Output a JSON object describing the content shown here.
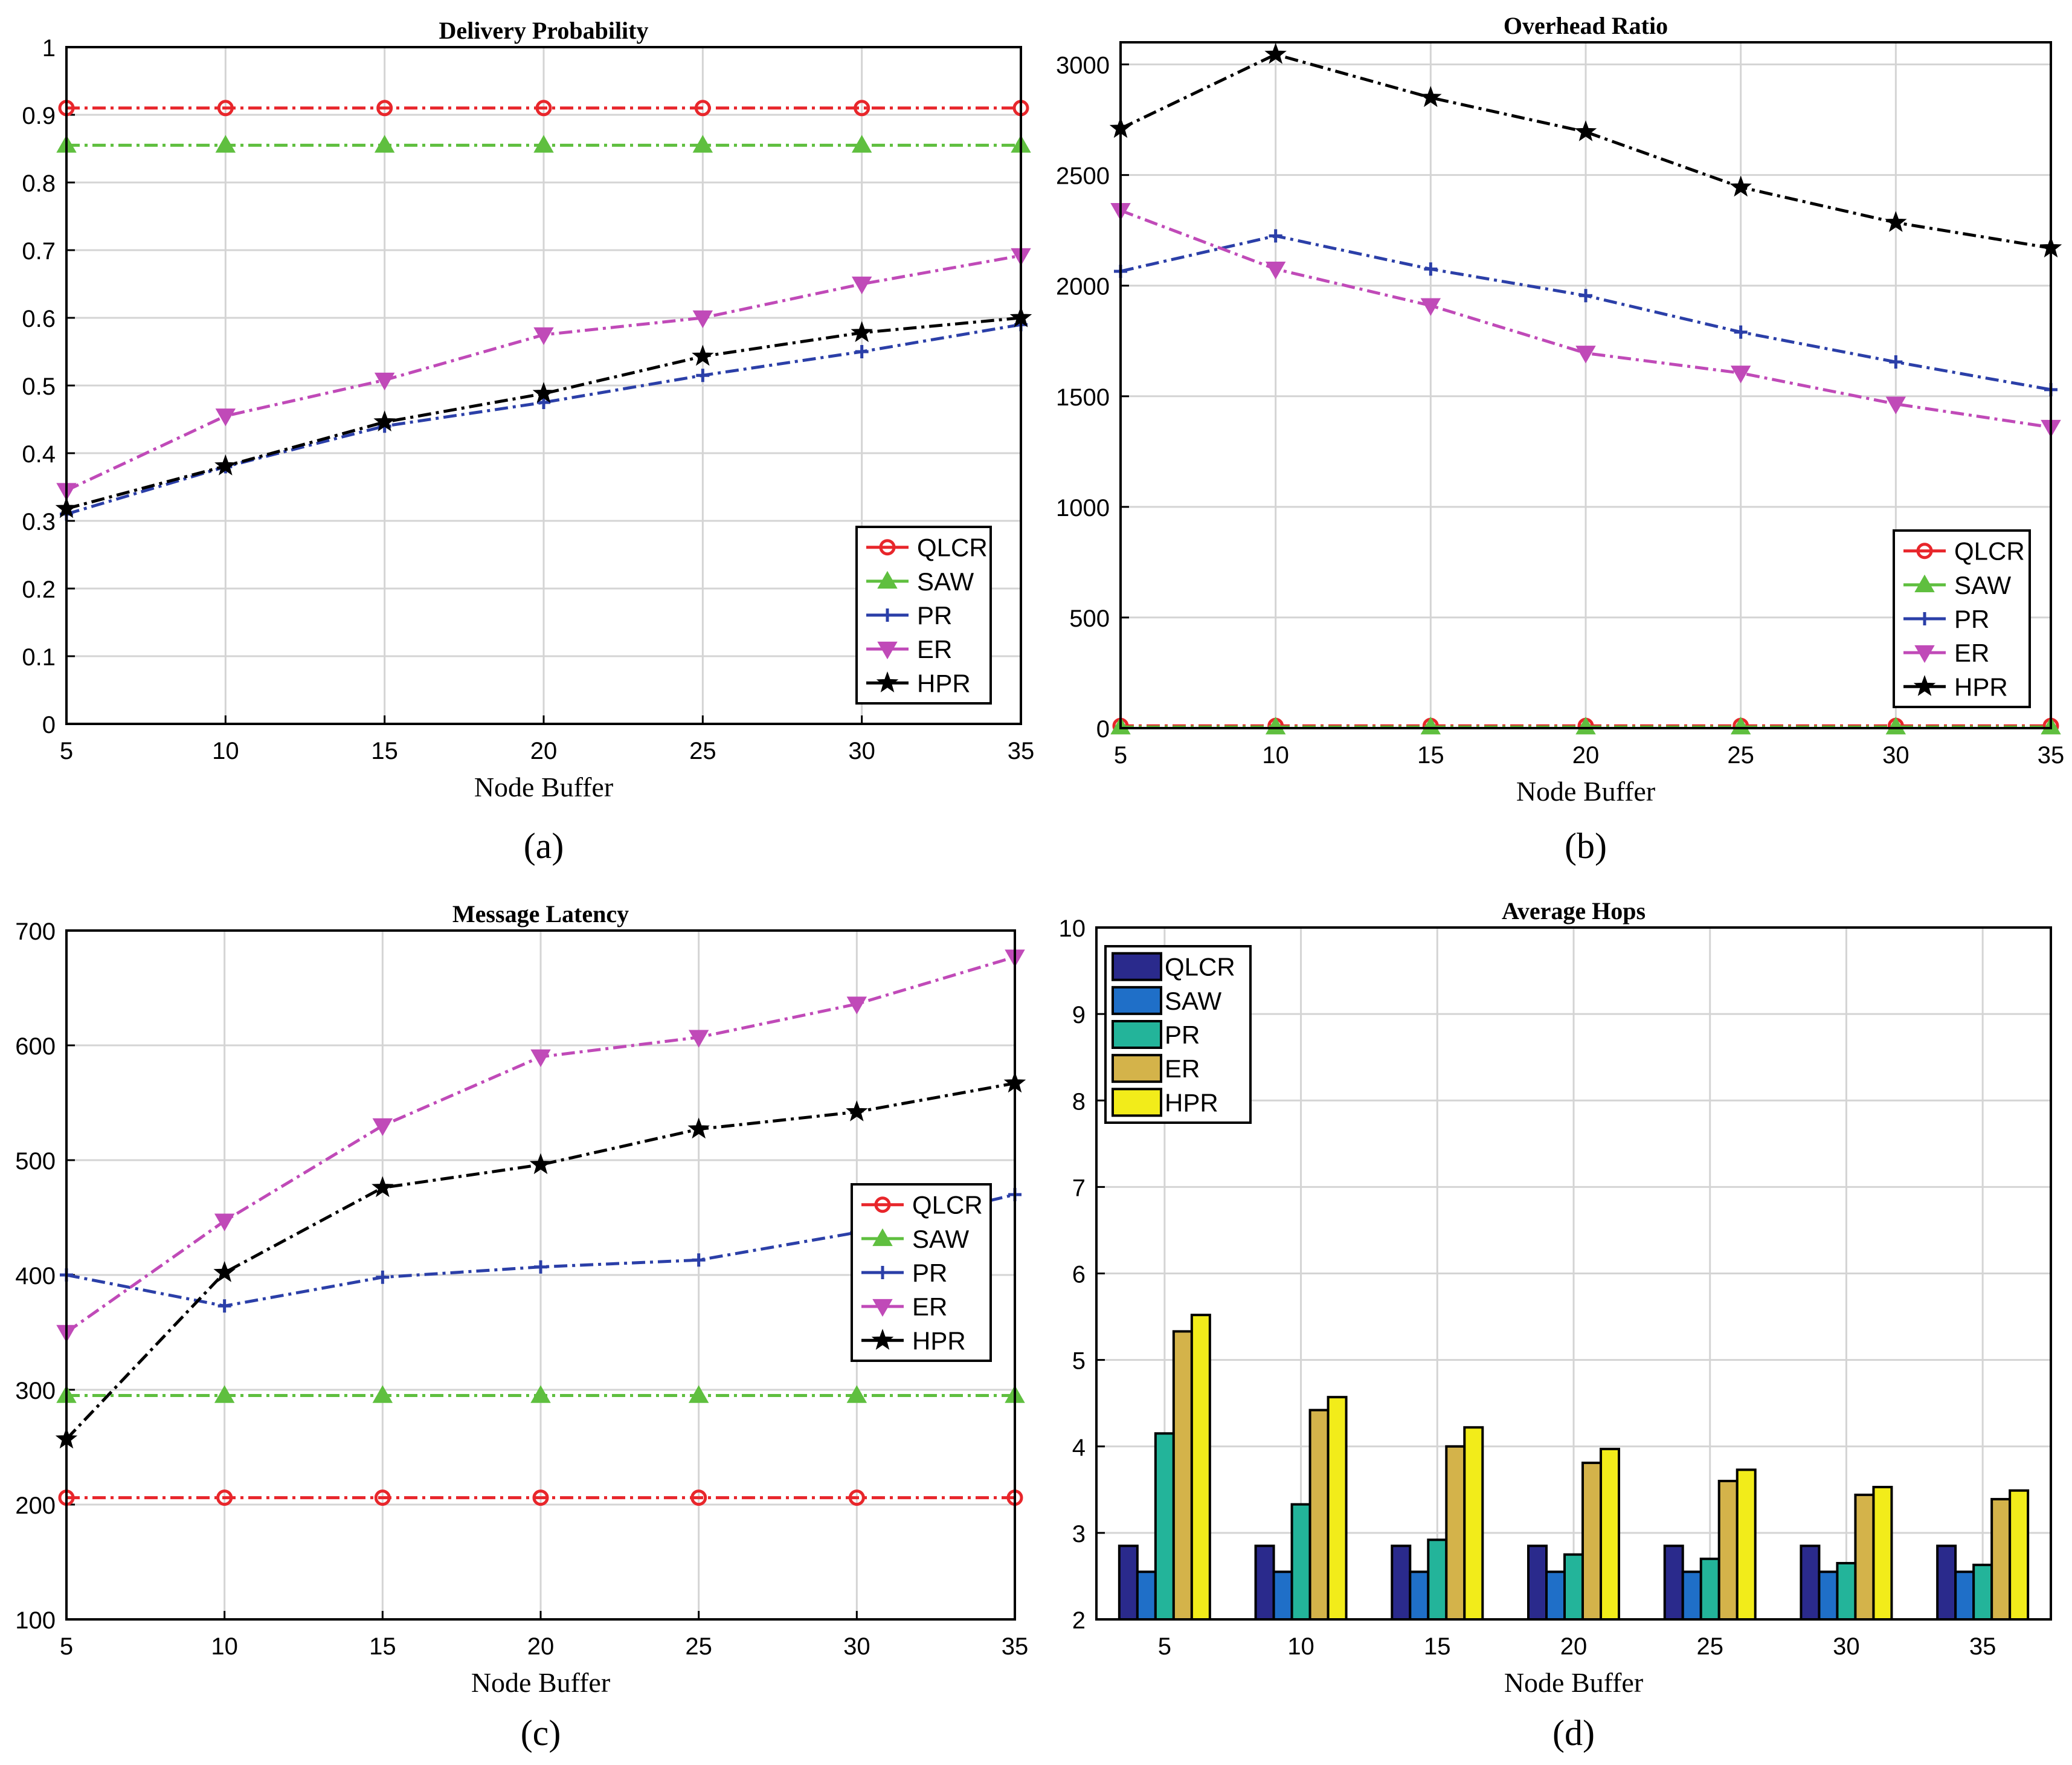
{
  "colors": {
    "QLCR": "#e8262b",
    "SAW": "#5fbf3f",
    "PR": "#2b3fa8",
    "ER": "#c04ab8",
    "HPR": "#000000",
    "bar_QLCR": "#2a2a8c",
    "bar_SAW": "#1f6fc8",
    "bar_PR": "#23b49a",
    "bar_ER": "#d4b34a",
    "bar_HPR": "#f2ec1a",
    "grid": "#d4d4d4"
  },
  "chart_data": [
    {
      "id": "a",
      "type": "line",
      "title": "Delivery Probability",
      "xlabel": "Node Buffer",
      "ylabel": "",
      "caption": "(a)",
      "x": [
        5,
        10,
        15,
        20,
        25,
        30,
        35
      ],
      "xlim": [
        5,
        35
      ],
      "ylim": [
        0,
        1
      ],
      "yticks": [
        0,
        0.1,
        0.2,
        0.3,
        0.4,
        0.5,
        0.6,
        0.7,
        0.8,
        0.9,
        1
      ],
      "ytick_labels": [
        "0",
        "0.1",
        "0.2",
        "0.3",
        "0.4",
        "0.5",
        "0.6",
        "0.7",
        "0.8",
        "0.9",
        "1"
      ],
      "legend": "bottom-right",
      "series": [
        {
          "name": "QLCR",
          "values": [
            0.91,
            0.91,
            0.91,
            0.91,
            0.91,
            0.91,
            0.91
          ]
        },
        {
          "name": "SAW",
          "values": [
            0.855,
            0.855,
            0.855,
            0.855,
            0.855,
            0.855,
            0.855
          ]
        },
        {
          "name": "PR",
          "values": [
            0.31,
            0.38,
            0.44,
            0.475,
            0.515,
            0.55,
            0.59
          ]
        },
        {
          "name": "ER",
          "values": [
            0.345,
            0.455,
            0.508,
            0.575,
            0.6,
            0.65,
            0.692
          ]
        },
        {
          "name": "HPR",
          "values": [
            0.318,
            0.381,
            0.446,
            0.488,
            0.543,
            0.578,
            0.6
          ]
        }
      ]
    },
    {
      "id": "b",
      "type": "line",
      "title": "Overhead Ratio",
      "xlabel": "Node Buffer",
      "ylabel": "",
      "caption": "(b)",
      "x": [
        5,
        10,
        15,
        20,
        25,
        30,
        35
      ],
      "xlim": [
        5,
        35
      ],
      "ylim": [
        0,
        3100
      ],
      "yticks": [
        0,
        500,
        1000,
        1500,
        2000,
        2500,
        3000
      ],
      "ytick_labels": [
        "0",
        "500",
        "1000",
        "1500",
        "2000",
        "2500",
        "3000"
      ],
      "legend": "bottom-right",
      "series": [
        {
          "name": "QLCR",
          "values": [
            10,
            10,
            10,
            10,
            10,
            10,
            10
          ]
        },
        {
          "name": "SAW",
          "values": [
            5,
            5,
            5,
            5,
            5,
            5,
            5
          ]
        },
        {
          "name": "PR",
          "values": [
            2065,
            2225,
            2075,
            1955,
            1790,
            1655,
            1530
          ]
        },
        {
          "name": "ER",
          "values": [
            2340,
            2075,
            1910,
            1695,
            1605,
            1465,
            1360
          ]
        },
        {
          "name": "HPR",
          "values": [
            2710,
            3045,
            2850,
            2695,
            2445,
            2285,
            2170
          ]
        }
      ]
    },
    {
      "id": "c",
      "type": "line",
      "title": "Message Latency",
      "xlabel": "Node Buffer",
      "ylabel": "",
      "caption": "(c)",
      "x": [
        5,
        10,
        15,
        20,
        25,
        30,
        35
      ],
      "xlim": [
        5,
        35
      ],
      "ylim": [
        100,
        700
      ],
      "yticks": [
        100,
        200,
        300,
        400,
        500,
        600,
        700
      ],
      "ytick_labels": [
        "100",
        "200",
        "300",
        "400",
        "500",
        "600",
        "700"
      ],
      "legend": "center-right",
      "series": [
        {
          "name": "QLCR",
          "values": [
            206,
            206,
            206,
            206,
            206,
            206,
            206
          ]
        },
        {
          "name": "SAW",
          "values": [
            295,
            295,
            295,
            295,
            295,
            295,
            295
          ]
        },
        {
          "name": "PR",
          "values": [
            400,
            373,
            398,
            407,
            413,
            437,
            470
          ]
        },
        {
          "name": "ER",
          "values": [
            350,
            447,
            530,
            590,
            607,
            636,
            677
          ]
        },
        {
          "name": "HPR",
          "values": [
            257,
            402,
            476,
            496,
            527,
            542,
            567
          ]
        }
      ]
    },
    {
      "id": "d",
      "type": "bar",
      "title": "Average Hops",
      "xlabel": "Node Buffer",
      "ylabel": "",
      "caption": "(d)",
      "categories": [
        "5",
        "10",
        "15",
        "20",
        "25",
        "30",
        "35"
      ],
      "ylim": [
        2,
        10
      ],
      "yticks": [
        2,
        3,
        4,
        5,
        6,
        7,
        8,
        9,
        10
      ],
      "ytick_labels": [
        "2",
        "3",
        "4",
        "5",
        "6",
        "7",
        "8",
        "9",
        "10"
      ],
      "legend": "top-left",
      "series": [
        {
          "name": "QLCR",
          "values": [
            2.85,
            2.85,
            2.85,
            2.85,
            2.85,
            2.85,
            2.85
          ]
        },
        {
          "name": "SAW",
          "values": [
            2.55,
            2.55,
            2.55,
            2.55,
            2.55,
            2.55,
            2.55
          ]
        },
        {
          "name": "PR",
          "values": [
            4.15,
            3.33,
            2.92,
            2.75,
            2.7,
            2.65,
            2.63
          ]
        },
        {
          "name": "ER",
          "values": [
            5.33,
            4.42,
            4.0,
            3.81,
            3.6,
            3.44,
            3.39
          ]
        },
        {
          "name": "HPR",
          "values": [
            5.52,
            4.57,
            4.22,
            3.97,
            3.73,
            3.53,
            3.49
          ]
        }
      ]
    }
  ]
}
